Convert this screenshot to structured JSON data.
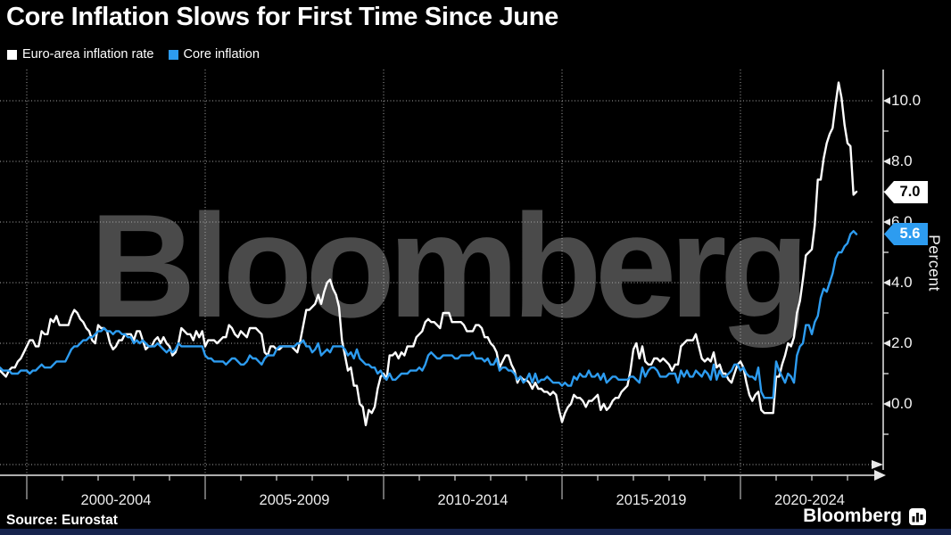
{
  "header": {
    "title": "Core Inflation Slows for First Time Since June",
    "legend": [
      {
        "label": "Euro-area inflation rate",
        "color": "#ffffff"
      },
      {
        "label": "Core inflation",
        "color": "#2d9cf0"
      }
    ]
  },
  "end_labels": {
    "headline": "7.0",
    "core": "5.6"
  },
  "footer": {
    "source": "Source: Eurostat",
    "brand": "Bloomberg"
  },
  "colors": {
    "background": "#000000",
    "headline_series": "#ffffff",
    "core_series": "#2d9cf0",
    "watermark": "#4a4a4a",
    "gridline": "#a8a8a8",
    "axis": "#e8e8e8",
    "bottom_strip": "#16234d"
  },
  "chart_data": {
    "type": "line",
    "title": "Core Inflation Slows for First Time Since June",
    "unit_label": "Percent",
    "watermark": "Bloomberg",
    "x_start": "1999-01",
    "x_end": "2023-04",
    "frequency": "monthly",
    "ylim": [
      -2,
      11
    ],
    "grid": "dotted",
    "legend_position": "top-left",
    "y_axis": {
      "tick_labels": [
        {
          "value": 10,
          "label": "10.0"
        },
        {
          "value": 8,
          "label": "8.0"
        },
        {
          "value": 6,
          "label": "6.0"
        },
        {
          "value": 4,
          "label": "4.0"
        },
        {
          "value": 2,
          "label": "2.0"
        },
        {
          "value": 0,
          "label": "0.0"
        }
      ],
      "minor_ticks": [
        9,
        7,
        5,
        3,
        1,
        -1
      ],
      "gridline_values": [
        10,
        8,
        6,
        4,
        2,
        0,
        -2
      ]
    },
    "x_axis": {
      "boundaries": [
        2000,
        2005,
        2010,
        2015,
        2020
      ],
      "period_labels": [
        "2000-2004",
        "2005-2009",
        "2010-2014",
        "2015-2019",
        "2020-2024"
      ],
      "year_ticks_from": 2001,
      "year_ticks_to": 2023
    },
    "series": [
      {
        "name": "Euro-area inflation rate",
        "color": "#ffffff",
        "last_value": 7.0,
        "values": [
          0.8,
          0.8,
          1.0,
          1.1,
          1.0,
          0.9,
          1.1,
          1.2,
          1.2,
          1.4,
          1.5,
          1.7,
          1.9,
          2.1,
          2.1,
          1.9,
          1.9,
          2.4,
          2.3,
          2.3,
          2.8,
          2.7,
          2.9,
          2.6,
          2.6,
          2.6,
          2.6,
          2.9,
          3.1,
          3.0,
          2.8,
          2.7,
          2.5,
          2.4,
          2.1,
          2.0,
          2.6,
          2.5,
          2.5,
          2.4,
          2.0,
          1.8,
          1.9,
          2.1,
          2.1,
          2.3,
          2.3,
          2.3,
          2.1,
          2.4,
          2.4,
          2.1,
          1.8,
          1.9,
          1.9,
          2.1,
          2.2,
          2.0,
          2.2,
          2.0,
          1.9,
          1.6,
          1.7,
          2.0,
          2.5,
          2.4,
          2.3,
          2.3,
          2.1,
          2.4,
          2.2,
          2.4,
          1.9,
          2.1,
          2.1,
          2.1,
          2.0,
          2.1,
          2.2,
          2.2,
          2.6,
          2.5,
          2.3,
          2.2,
          2.4,
          2.3,
          2.2,
          2.5,
          2.5,
          2.5,
          2.4,
          2.3,
          1.7,
          1.6,
          1.9,
          1.9,
          1.8,
          1.8,
          1.9,
          1.9,
          1.9,
          1.9,
          1.8,
          1.7,
          2.1,
          2.6,
          3.1,
          3.1,
          3.2,
          3.3,
          3.6,
          3.3,
          3.7,
          4.0,
          4.1,
          3.8,
          3.6,
          3.2,
          2.1,
          1.6,
          1.1,
          1.2,
          0.6,
          0.6,
          0.0,
          -0.1,
          -0.7,
          -0.2,
          -0.3,
          -0.1,
          0.5,
          0.9,
          1.0,
          0.8,
          1.6,
          1.6,
          1.7,
          1.5,
          1.7,
          1.6,
          1.9,
          1.9,
          1.9,
          2.2,
          2.3,
          2.4,
          2.7,
          2.8,
          2.7,
          2.7,
          2.6,
          2.5,
          3.0,
          3.0,
          3.0,
          2.7,
          2.7,
          2.7,
          2.7,
          2.6,
          2.4,
          2.4,
          2.4,
          2.6,
          2.6,
          2.5,
          2.2,
          2.2,
          2.0,
          1.9,
          1.7,
          1.2,
          1.4,
          1.6,
          1.6,
          1.3,
          1.1,
          0.7,
          0.9,
          0.8,
          0.8,
          0.7,
          0.5,
          0.7,
          0.5,
          0.5,
          0.4,
          0.4,
          0.3,
          0.4,
          0.3,
          -0.2,
          -0.6,
          -0.3,
          -0.1,
          0.0,
          0.3,
          0.2,
          0.2,
          0.1,
          -0.1,
          0.1,
          0.1,
          0.2,
          0.3,
          -0.2,
          0.0,
          -0.2,
          -0.1,
          0.1,
          0.2,
          0.2,
          0.4,
          0.5,
          0.6,
          1.1,
          1.8,
          2.0,
          1.5,
          1.9,
          1.4,
          1.3,
          1.3,
          1.5,
          1.5,
          1.4,
          1.5,
          1.4,
          1.3,
          1.1,
          1.3,
          1.3,
          1.9,
          2.0,
          2.1,
          2.1,
          2.1,
          2.3,
          1.9,
          1.5,
          1.4,
          1.5,
          1.4,
          1.7,
          1.2,
          1.3,
          1.0,
          1.0,
          0.8,
          0.7,
          1.0,
          1.3,
          1.4,
          1.2,
          0.7,
          0.3,
          0.1,
          0.3,
          0.4,
          -0.2,
          -0.3,
          -0.3,
          -0.3,
          -0.3,
          0.9,
          0.9,
          1.3,
          1.6,
          2.0,
          1.9,
          2.2,
          3.0,
          3.4,
          4.1,
          4.9,
          5.0,
          5.1,
          5.9,
          7.4,
          7.4,
          8.1,
          8.6,
          8.9,
          9.1,
          9.9,
          10.6,
          10.1,
          9.2,
          8.6,
          8.5,
          6.9,
          7.0
        ]
      },
      {
        "name": "Core inflation",
        "color": "#2d9cf0",
        "last_value": 5.6,
        "values": [
          1.2,
          1.1,
          1.2,
          1.2,
          1.1,
          1.1,
          1.1,
          1.0,
          1.0,
          1.0,
          1.1,
          1.1,
          1.1,
          1.0,
          1.1,
          1.1,
          1.2,
          1.3,
          1.2,
          1.2,
          1.2,
          1.3,
          1.4,
          1.4,
          1.4,
          1.4,
          1.6,
          1.8,
          1.9,
          1.9,
          2.0,
          2.1,
          2.1,
          2.2,
          2.2,
          2.3,
          2.4,
          2.4,
          2.5,
          2.4,
          2.4,
          2.3,
          2.4,
          2.4,
          2.3,
          2.3,
          2.2,
          2.2,
          2.0,
          2.1,
          2.0,
          2.1,
          2.0,
          1.9,
          1.9,
          1.9,
          2.0,
          1.9,
          1.8,
          1.7,
          1.8,
          1.7,
          1.8,
          2.0,
          1.9,
          1.9,
          1.9,
          1.9,
          1.9,
          1.9,
          1.9,
          1.9,
          1.6,
          1.5,
          1.5,
          1.4,
          1.4,
          1.4,
          1.4,
          1.3,
          1.4,
          1.5,
          1.5,
          1.4,
          1.3,
          1.3,
          1.4,
          1.6,
          1.5,
          1.5,
          1.4,
          1.3,
          1.5,
          1.6,
          1.6,
          1.6,
          1.8,
          1.9,
          1.9,
          1.9,
          1.9,
          1.9,
          1.9,
          2.0,
          2.0,
          2.1,
          1.9,
          1.9,
          1.7,
          1.8,
          2.0,
          1.6,
          1.7,
          1.8,
          1.7,
          1.9,
          1.9,
          1.9,
          1.9,
          1.8,
          1.6,
          1.7,
          1.5,
          1.8,
          1.5,
          1.4,
          1.3,
          1.3,
          1.2,
          1.2,
          1.0,
          1.1,
          0.9,
          0.8,
          1.0,
          0.8,
          0.8,
          0.9,
          1.0,
          1.0,
          1.0,
          1.1,
          1.1,
          1.1,
          1.2,
          1.1,
          1.3,
          1.6,
          1.7,
          1.6,
          1.5,
          1.5,
          1.6,
          1.6,
          1.6,
          1.6,
          1.5,
          1.5,
          1.6,
          1.6,
          1.6,
          1.6,
          1.7,
          1.5,
          1.5,
          1.5,
          1.4,
          1.5,
          1.3,
          1.3,
          1.5,
          1.1,
          1.2,
          1.2,
          1.1,
          1.1,
          1.0,
          0.8,
          0.9,
          0.7,
          0.8,
          1.0,
          0.7,
          1.0,
          0.7,
          0.8,
          0.8,
          0.9,
          0.8,
          0.7,
          0.7,
          0.7,
          0.6,
          0.7,
          0.6,
          0.6,
          0.9,
          0.8,
          1.0,
          0.9,
          0.9,
          1.1,
          0.9,
          0.9,
          1.0,
          0.8,
          1.0,
          0.7,
          0.8,
          0.9,
          0.9,
          0.8,
          0.8,
          0.8,
          0.8,
          0.9,
          0.9,
          0.8,
          0.7,
          1.2,
          0.9,
          1.1,
          1.2,
          1.2,
          1.1,
          0.9,
          0.9,
          0.9,
          1.0,
          1.0,
          1.0,
          0.7,
          1.1,
          0.9,
          1.1,
          0.9,
          0.9,
          1.1,
          1.0,
          0.9,
          1.1,
          1.0,
          0.8,
          1.3,
          0.8,
          1.1,
          0.9,
          0.9,
          1.0,
          1.1,
          1.3,
          1.3,
          1.1,
          1.2,
          1.0,
          0.9,
          0.9,
          0.8,
          1.2,
          0.4,
          0.2,
          0.2,
          0.2,
          0.2,
          1.4,
          1.1,
          0.9,
          0.7,
          1.0,
          0.9,
          0.7,
          1.6,
          1.9,
          2.0,
          2.6,
          2.6,
          2.3,
          2.7,
          2.9,
          3.5,
          3.8,
          3.7,
          4.0,
          4.3,
          4.8,
          5.0,
          5.0,
          5.2,
          5.3,
          5.6,
          5.7,
          5.6
        ]
      }
    ]
  }
}
